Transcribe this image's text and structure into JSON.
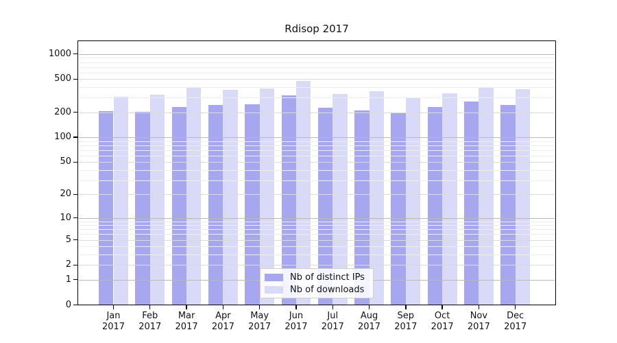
{
  "title": "Rdisop 2017",
  "year": "2017",
  "legend": {
    "ips_label": "Nb of distinct IPs",
    "downloads_label": "Nb of downloads"
  },
  "colors": {
    "ips": "#a7a7f0",
    "downloads": "#d9d9f8",
    "grid_major": "#b9b9b9",
    "grid_mid": "#dadada",
    "grid_minor": "#ededed",
    "axis": "#000000"
  },
  "chart_data": {
    "type": "bar",
    "title": "Rdisop 2017",
    "categories": [
      "Jan 2017",
      "Feb 2017",
      "Mar 2017",
      "Apr 2017",
      "May 2017",
      "Jun 2017",
      "Jul 2017",
      "Aug 2017",
      "Sep 2017",
      "Oct 2017",
      "Nov 2017",
      "Dec 2017"
    ],
    "months": [
      "Jan",
      "Feb",
      "Mar",
      "Apr",
      "May",
      "Jun",
      "Jul",
      "Aug",
      "Sep",
      "Oct",
      "Nov",
      "Dec"
    ],
    "series": [
      {
        "name": "Nb of distinct IPs",
        "values": [
          205,
          202,
          232,
          246,
          248,
          318,
          228,
          210,
          195,
          231,
          270,
          247
        ]
      },
      {
        "name": "Nb of downloads",
        "values": [
          307,
          323,
          395,
          371,
          383,
          477,
          329,
          355,
          297,
          337,
          402,
          378
        ]
      }
    ],
    "yscale": "log1p",
    "yticks": [
      0,
      1,
      2,
      5,
      10,
      20,
      50,
      100,
      200,
      500,
      1000
    ],
    "ylim": [
      0,
      1450
    ],
    "grid": true,
    "legend_position": "inside-bottom-center"
  }
}
